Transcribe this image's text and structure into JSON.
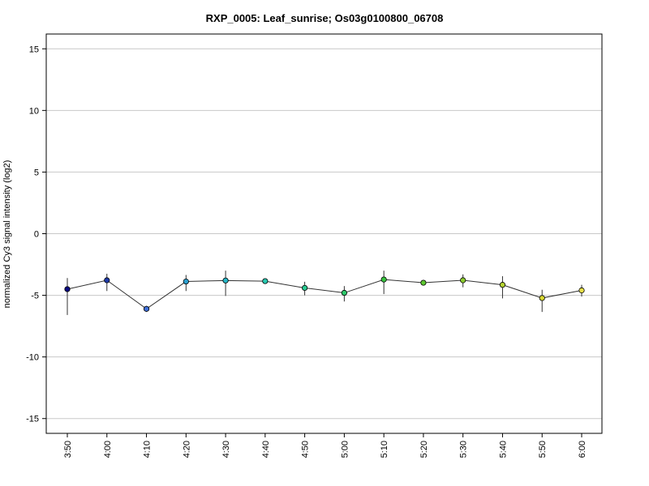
{
  "chart_data": {
    "type": "line",
    "title": "RXP_0005: Leaf_sunrise; Os03g0100800_06708",
    "ylabel": "normalized Cy3 signal intensity (log2)",
    "xlabel": "",
    "ylim": [
      -16.2,
      16.2
    ],
    "yticks": [
      -15,
      -10,
      -5,
      0,
      5,
      10,
      15
    ],
    "grid": true,
    "categories": [
      "3:50",
      "4:00",
      "4:10",
      "4:20",
      "4:30",
      "4:40",
      "4:50",
      "5:00",
      "5:10",
      "5:20",
      "5:30",
      "5:40",
      "5:50",
      "6:00"
    ],
    "series": [
      {
        "values": [
          -4.5,
          -3.78,
          -6.1,
          -3.88,
          -3.8,
          -3.85,
          -4.4,
          -4.8,
          -3.72,
          -3.98,
          -3.78,
          -4.15,
          -5.22,
          -4.6
        ],
        "err_low": [
          -6.6,
          -4.65,
          -6.35,
          -4.65,
          -5.05,
          -3.95,
          -5.0,
          -5.5,
          -4.9,
          -4.05,
          -4.35,
          -5.25,
          -6.35,
          -5.1
        ],
        "err_high": [
          -3.6,
          -3.25,
          -5.85,
          -3.35,
          -3.0,
          -3.7,
          -3.9,
          -4.25,
          -3.0,
          -3.88,
          -3.3,
          -3.45,
          -4.55,
          -4.15
        ],
        "point_colors": [
          "#0a0a80",
          "#1e3aa8",
          "#3f6fd8",
          "#2b9fcf",
          "#25b8c8",
          "#27c8b0",
          "#27c990",
          "#2dc86a",
          "#38c43e",
          "#5ec832",
          "#8ccc2e",
          "#b4d232",
          "#d8d832",
          "#e8e04a"
        ]
      }
    ]
  }
}
